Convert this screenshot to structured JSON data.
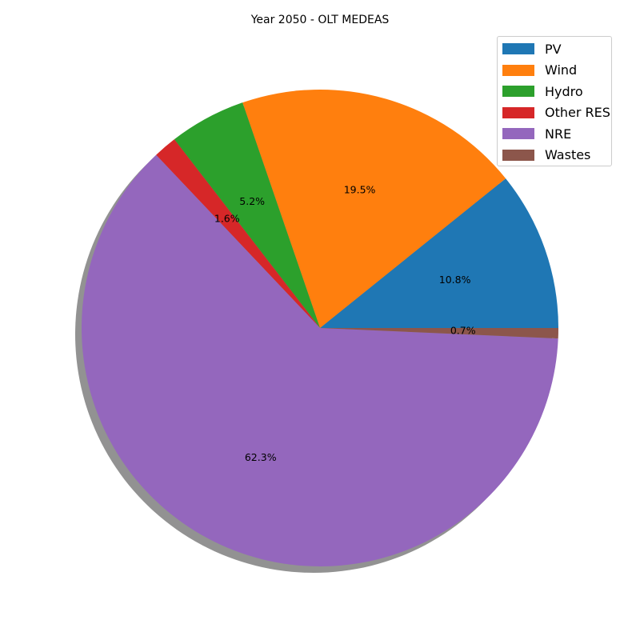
{
  "chart_data": {
    "type": "pie",
    "title": "Year 2050 - OLT MEDEAS",
    "categories": [
      "PV",
      "Wind",
      "Hydro",
      "Other RES",
      "NRE",
      "Wastes"
    ],
    "values": [
      10.8,
      19.5,
      5.2,
      1.6,
      62.3,
      0.7
    ],
    "labels": [
      "10.8%",
      "19.5%",
      "5.2%",
      "1.6%",
      "62.3%",
      "0.7%"
    ],
    "colors": [
      "#1f77b4",
      "#ff7f0e",
      "#2ca02c",
      "#d62728",
      "#9467bd",
      "#8c564b"
    ],
    "shadow": true,
    "start_angle_deg": 0,
    "direction": "counterclockwise",
    "legend": {
      "placement": "top-right"
    }
  }
}
